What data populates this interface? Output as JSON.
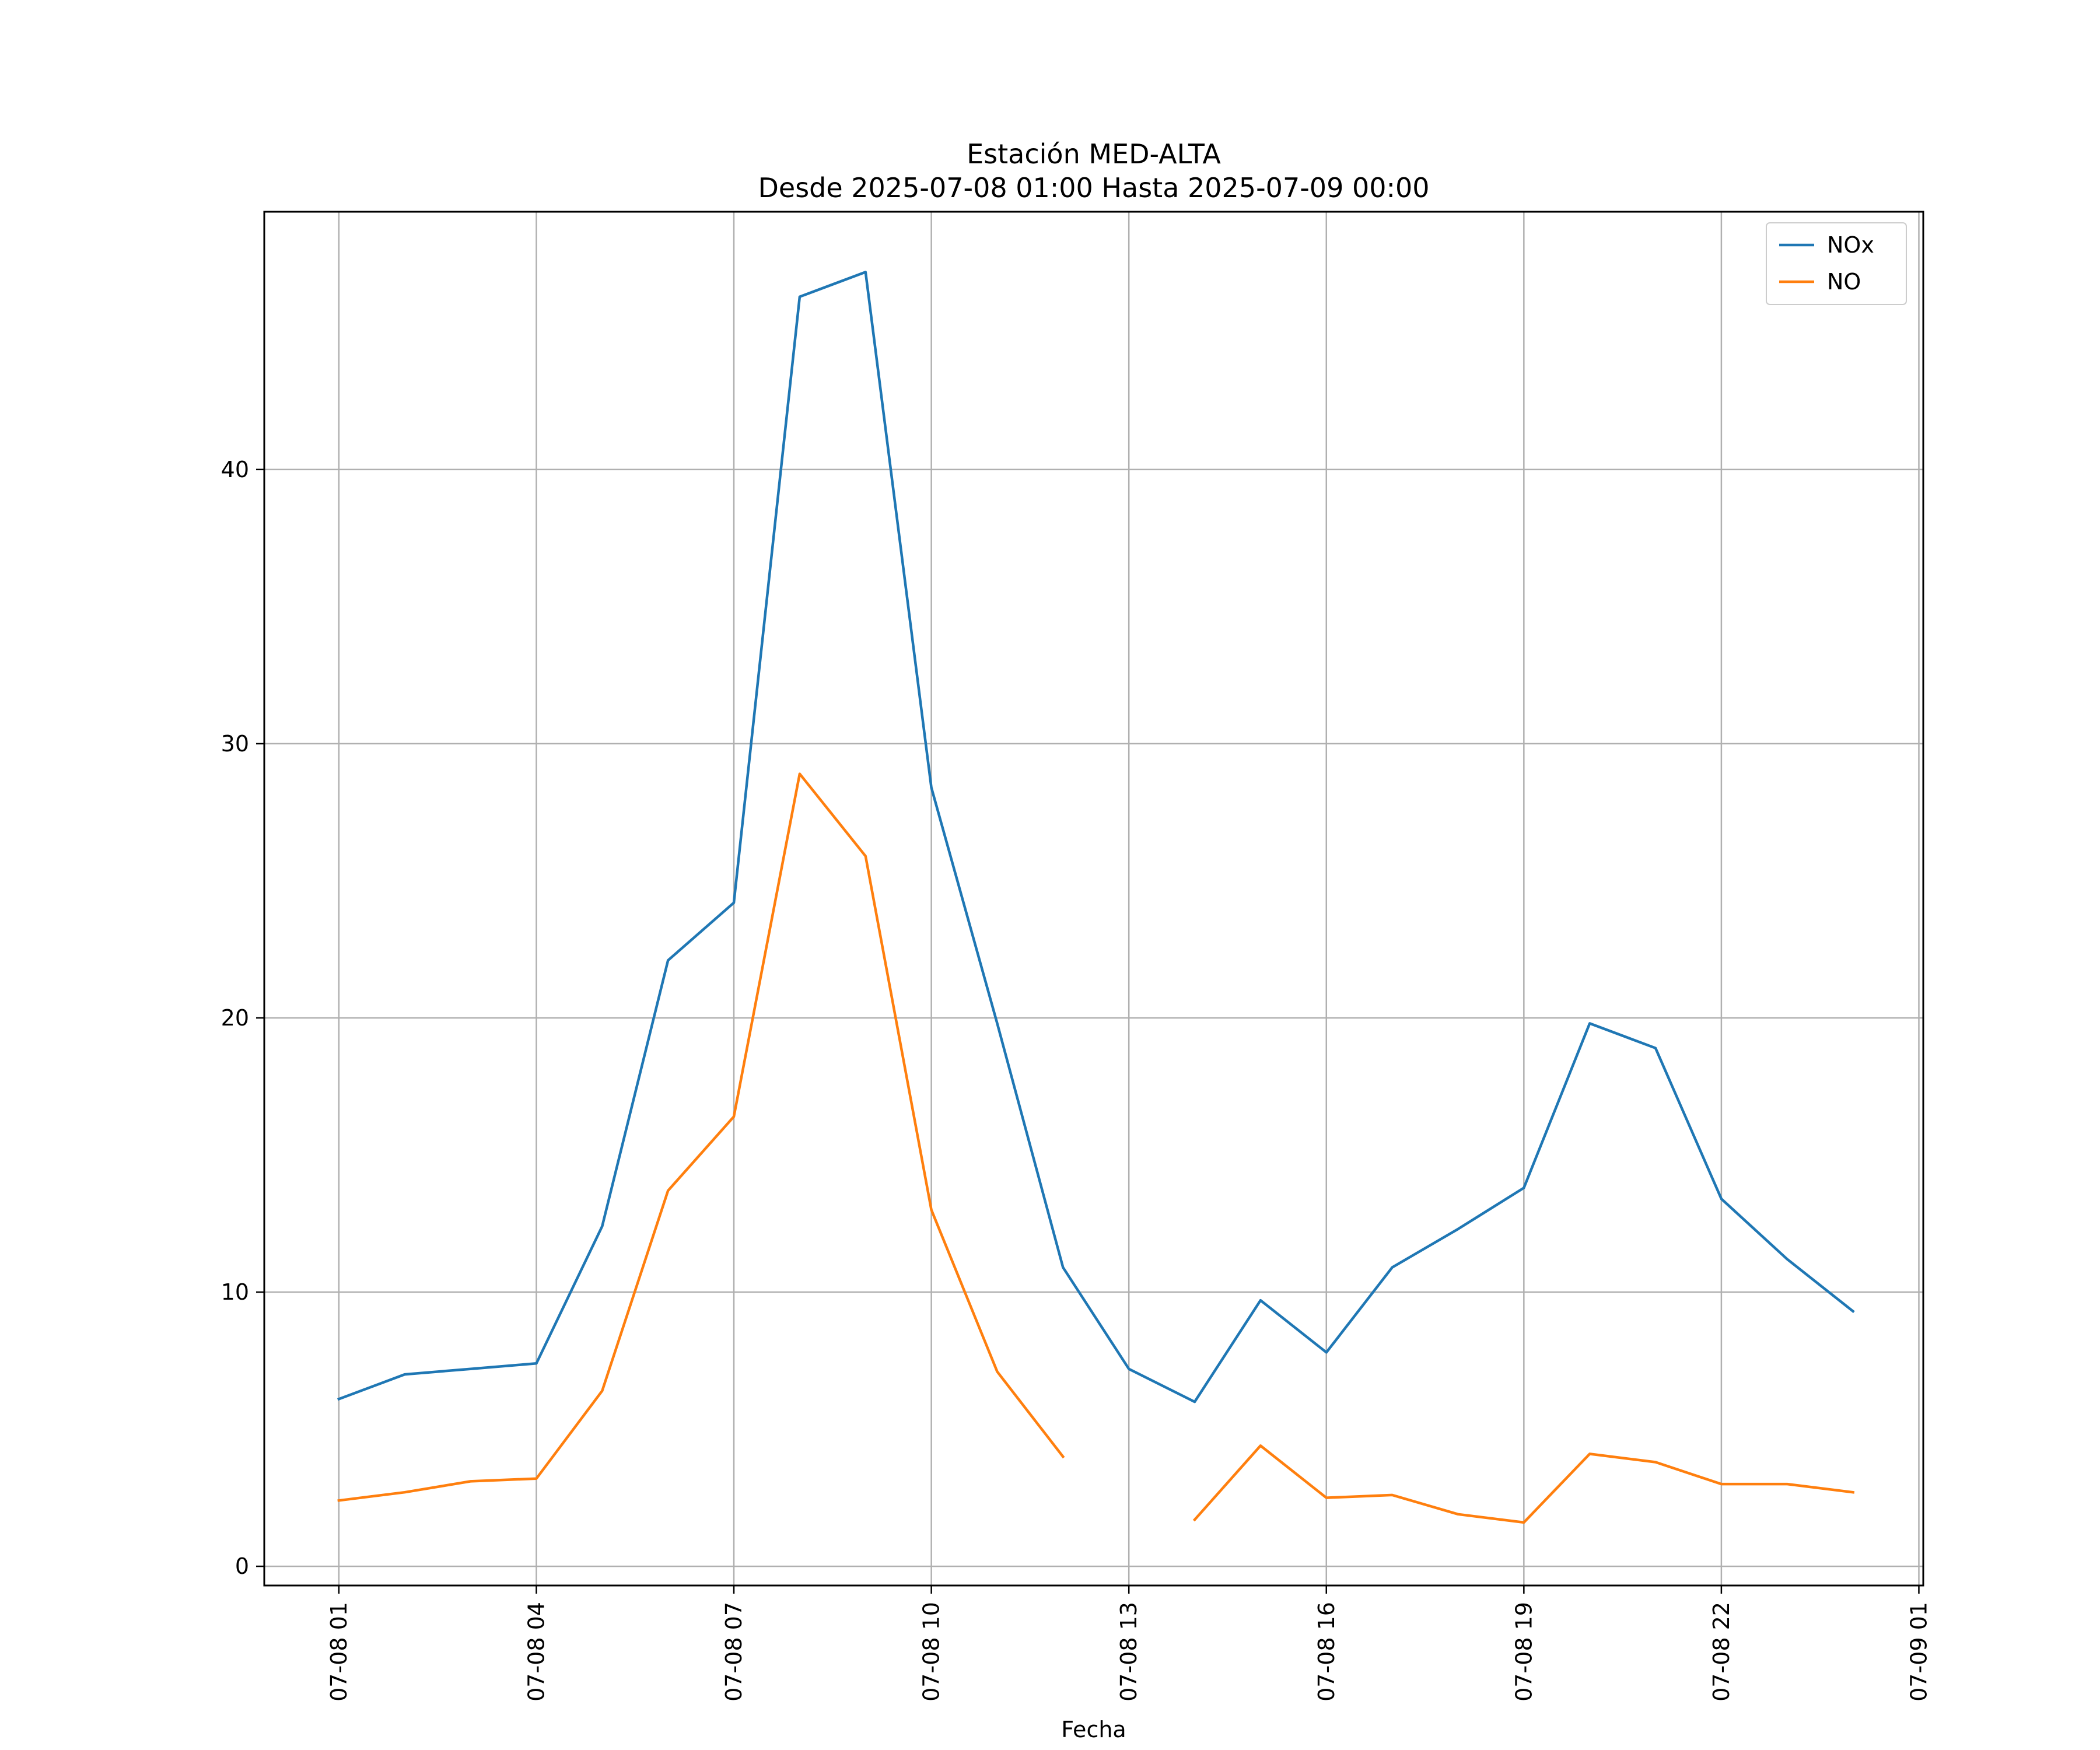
{
  "chart_data": {
    "type": "line",
    "title": "Estación MED-ALTA",
    "subtitle": "Desde 2025-07-08 01:00 Hasta 2025-07-09 00:00",
    "xlabel": "Fecha",
    "ylabel": "",
    "x": [
      "2025-07-08 01:00",
      "2025-07-08 02:00",
      "2025-07-08 03:00",
      "2025-07-08 04:00",
      "2025-07-08 05:00",
      "2025-07-08 06:00",
      "2025-07-08 07:00",
      "2025-07-08 08:00",
      "2025-07-08 09:00",
      "2025-07-08 10:00",
      "2025-07-08 11:00",
      "2025-07-08 12:00",
      "2025-07-08 13:00",
      "2025-07-08 14:00",
      "2025-07-08 15:00",
      "2025-07-08 16:00",
      "2025-07-08 17:00",
      "2025-07-08 18:00",
      "2025-07-08 19:00",
      "2025-07-08 20:00",
      "2025-07-08 21:00",
      "2025-07-08 22:00",
      "2025-07-08 23:00",
      "2025-07-09 00:00"
    ],
    "xticks": [
      "07-08 01",
      "07-08 04",
      "07-08 07",
      "07-08 10",
      "07-08 13",
      "07-08 16",
      "07-08 19",
      "07-08 22",
      "07-09 01"
    ],
    "xlim": [
      "2025-07-07 23:52",
      "2025-07-09 01:04"
    ],
    "yticks": [
      0,
      10,
      20,
      30,
      40
    ],
    "ylim": [
      -0.7,
      49.4
    ],
    "grid": true,
    "legend_position": "upper right",
    "series": [
      {
        "name": "NOx",
        "color": "#1f77b4",
        "values": [
          6.1,
          7.0,
          7.2,
          7.4,
          12.4,
          22.1,
          24.2,
          46.3,
          47.2,
          28.4,
          19.8,
          10.9,
          7.2,
          6.0,
          9.7,
          7.8,
          10.9,
          12.3,
          13.8,
          19.8,
          18.9,
          13.4,
          11.2,
          9.3
        ]
      },
      {
        "name": "NO",
        "color": "#ff7f0e",
        "values": [
          2.4,
          2.7,
          3.1,
          3.2,
          6.4,
          13.7,
          16.4,
          28.9,
          25.9,
          13.0,
          7.1,
          4.0,
          null,
          1.7,
          4.4,
          2.5,
          2.6,
          1.9,
          1.6,
          4.1,
          3.8,
          3.0,
          3.0,
          2.7
        ]
      }
    ]
  }
}
